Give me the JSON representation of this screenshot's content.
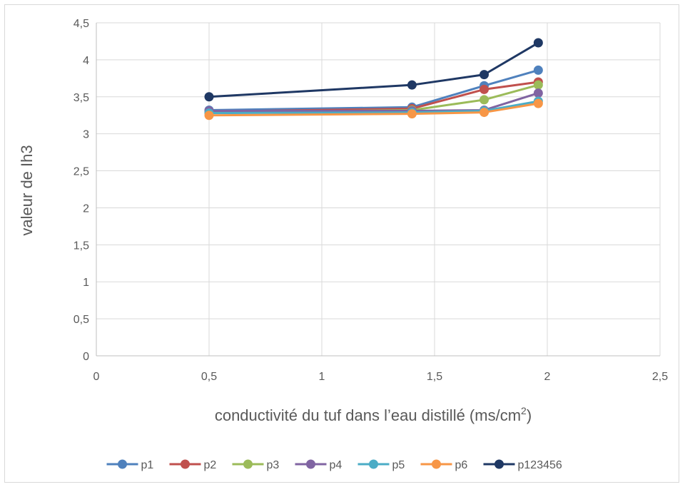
{
  "chart_data": {
    "type": "scatter",
    "title": "",
    "xlabel": "conductivité du tuf dans l’eau distillé (ms/cm",
    "xlabel_superscript": "2",
    "xlabel_suffix": ")",
    "ylabel": "valeur de Ih3",
    "xlim": [
      0,
      2.5
    ],
    "ylim": [
      0,
      4.5
    ],
    "x_ticks": [
      "0",
      "0,5",
      "1",
      "1,5",
      "2",
      "2,5"
    ],
    "y_ticks": [
      "0",
      "0,5",
      "1",
      "1,5",
      "2",
      "2,5",
      "3",
      "3,5",
      "4",
      "4,5"
    ],
    "grid": true,
    "legend_position": "bottom",
    "x": [
      0.5,
      1.4,
      1.72,
      1.96
    ],
    "series": [
      {
        "name": "p1",
        "color": "#4f81bd",
        "values": [
          3.32,
          3.36,
          3.65,
          3.86
        ]
      },
      {
        "name": "p2",
        "color": "#c0504d",
        "values": [
          3.3,
          3.34,
          3.6,
          3.7
        ]
      },
      {
        "name": "p3",
        "color": "#9bbb59",
        "values": [
          3.29,
          3.32,
          3.46,
          3.66
        ]
      },
      {
        "name": "p4",
        "color": "#8064a2",
        "values": [
          3.31,
          3.31,
          3.32,
          3.55
        ]
      },
      {
        "name": "p5",
        "color": "#4bacc6",
        "values": [
          3.28,
          3.29,
          3.31,
          3.44
        ]
      },
      {
        "name": "p6",
        "color": "#f79646",
        "values": [
          3.25,
          3.27,
          3.29,
          3.41
        ]
      },
      {
        "name": "p123456",
        "color": "#1f3864",
        "values": [
          3.5,
          3.66,
          3.8,
          4.23
        ]
      }
    ]
  }
}
